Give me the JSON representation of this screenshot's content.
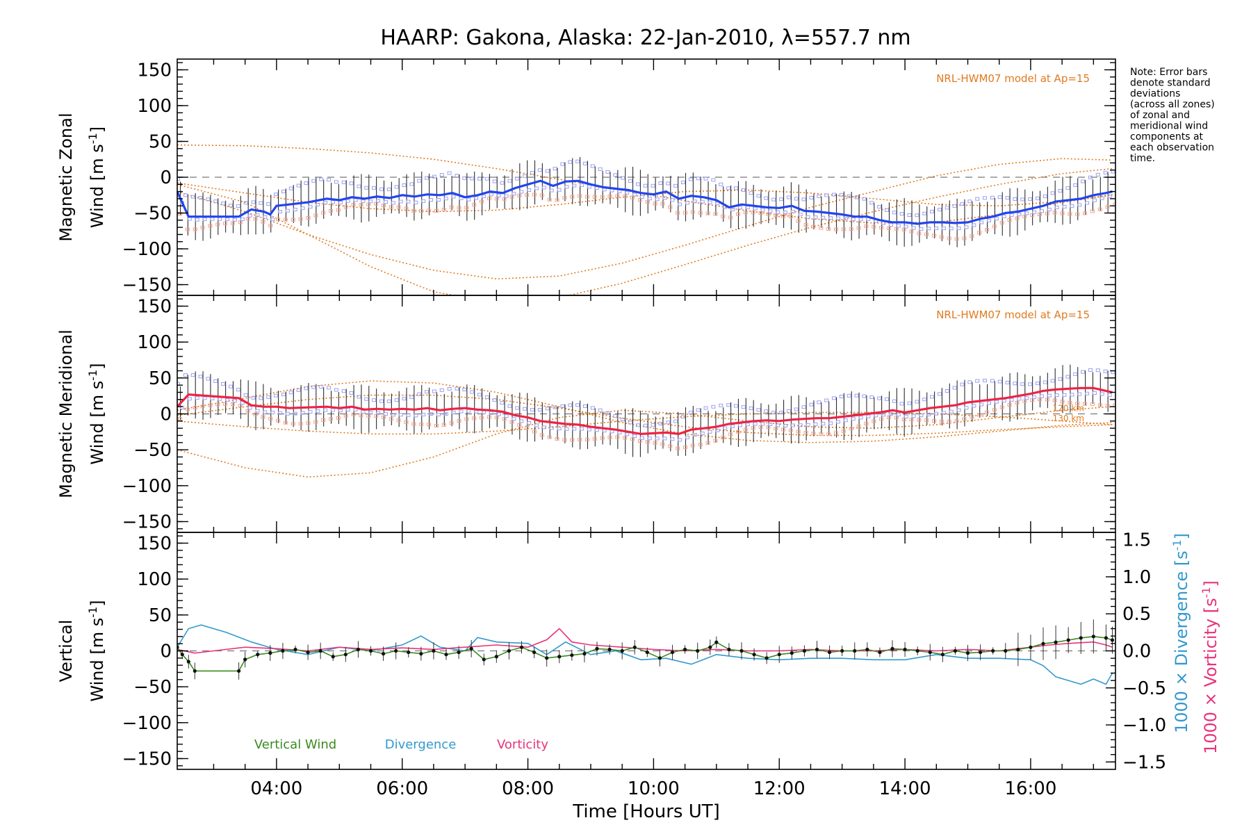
{
  "title": "HAARP: Gakona,  Alaska: 22-Jan-2010, λ=557.7 nm",
  "note": [
    "Note: Error bars",
    "denote standard",
    "deviations",
    "(across all zones)",
    "of zonal and",
    "meridional wind",
    "components at",
    "each observation",
    "time."
  ],
  "colors": {
    "zonal": "#2244ee",
    "meridional": "#ee2244",
    "vertical": "#3a8a1e",
    "divergence": "#3399cc",
    "vorticity": "#e8337a",
    "model": "#e07a1f",
    "zone_blue": "#9aa0f0",
    "zone_salmon": "#f3a08a"
  },
  "chart_data": [
    {
      "type": "line",
      "panel": "zonal",
      "ylabel_main": "Magnetic Zonal",
      "ylabel_sub": "Wind [m s",
      "ylabel_sup": "-1",
      "ylabel_end": "]",
      "ylim": [
        -165,
        165
      ],
      "yticks": [
        150,
        100,
        50,
        0,
        -50,
        -100,
        -150
      ],
      "model_note": "NRL-HWM07 model at Ap=15",
      "series": [
        {
          "name": "Zonal wind",
          "x": [
            2.42,
            2.6,
            3.4,
            3.6,
            3.8,
            3.9,
            4.0,
            4.2,
            4.5,
            4.8,
            5.0,
            5.2,
            5.4,
            5.6,
            5.8,
            6.0,
            6.2,
            6.4,
            6.6,
            6.8,
            7.0,
            7.2,
            7.4,
            7.6,
            7.8,
            8.0,
            8.2,
            8.4,
            8.6,
            8.8,
            9.0,
            9.2,
            9.4,
            9.6,
            9.8,
            10.0,
            10.2,
            10.4,
            10.6,
            10.8,
            11.0,
            11.2,
            11.4,
            11.6,
            11.8,
            12.0,
            12.2,
            12.4,
            12.6,
            12.8,
            13.0,
            13.2,
            13.4,
            13.6,
            13.8,
            14.0,
            14.2,
            14.4,
            14.6,
            14.8,
            15.0,
            15.2,
            15.4,
            15.6,
            15.8,
            16.0,
            16.2,
            16.4,
            16.6,
            16.8,
            17.0,
            17.2,
            17.3
          ],
          "y": [
            -20,
            -55,
            -55,
            -45,
            -48,
            -52,
            -40,
            -38,
            -35,
            -30,
            -32,
            -28,
            -30,
            -27,
            -29,
            -25,
            -27,
            -24,
            -25,
            -22,
            -28,
            -25,
            -20,
            -22,
            -15,
            -10,
            -5,
            -12,
            -6,
            -5,
            -10,
            -14,
            -16,
            -18,
            -22,
            -24,
            -20,
            -30,
            -26,
            -28,
            -32,
            -42,
            -38,
            -40,
            -42,
            -43,
            -40,
            -47,
            -48,
            -50,
            -52,
            -55,
            -55,
            -60,
            -63,
            -63,
            -65,
            -63,
            -63,
            -64,
            -63,
            -58,
            -55,
            -50,
            -48,
            -44,
            -40,
            -34,
            -32,
            -30,
            -25,
            -22,
            -20
          ]
        }
      ],
      "error_spread": 28,
      "model_curves": [
        {
          "x": [
            2.42,
            3.5,
            4.5,
            5.5,
            6.5,
            7.5,
            8.5,
            9.5,
            10.5,
            11.5,
            12.5,
            13.5,
            14.5,
            15.5,
            16.5,
            17.3
          ],
          "y": [
            45,
            44,
            40,
            34,
            25,
            12,
            -3,
            -18,
            -33,
            -47,
            -58,
            -64,
            -63,
            -52,
            -35,
            -25
          ]
        },
        {
          "x": [
            2.42,
            3.5,
            4.5,
            5.5,
            6.5,
            7.5,
            8.5,
            9.5,
            10.5,
            11.5,
            12.5,
            13.5,
            14.5,
            15.5,
            16.5,
            17.3
          ],
          "y": [
            -10,
            -35,
            -80,
            -125,
            -160,
            -175,
            -168,
            -148,
            -122,
            -95,
            -70,
            -48,
            -28,
            -10,
            5,
            12
          ]
        },
        {
          "x": [
            2.42,
            3.5,
            4.5,
            5.5,
            6.5,
            7.5,
            8.5,
            9.5,
            10.5,
            11.5,
            12.5,
            13.5,
            14.5,
            15.5,
            16.5,
            17.3
          ],
          "y": [
            -20,
            -48,
            -80,
            -108,
            -130,
            -142,
            -138,
            -120,
            -95,
            -68,
            -42,
            -20,
            2,
            18,
            26,
            24
          ]
        },
        {
          "x": [
            2.42,
            3.5,
            4.5,
            5.5,
            6.5,
            7.5,
            8.5,
            9.5,
            10.5,
            11.5,
            12.5,
            13.5,
            14.5,
            15.5,
            16.5,
            17.3
          ],
          "y": [
            -8,
            -22,
            -35,
            -44,
            -48,
            -46,
            -38,
            -28,
            -20,
            -18,
            -22,
            -30,
            -38,
            -40,
            -34,
            -24
          ]
        }
      ]
    },
    {
      "type": "line",
      "panel": "meridional",
      "ylabel_main": "Magnetic Meridional",
      "ylabel_sub": "Wind [m s",
      "ylabel_sup": "-1",
      "ylabel_end": "]",
      "ylim": [
        -165,
        165
      ],
      "yticks": [
        150,
        100,
        50,
        0,
        -50,
        -100,
        -150
      ],
      "model_note": "NRL-HWM07 model at Ap=15",
      "km_labels": [
        "120 km",
        "130 km"
      ],
      "series": [
        {
          "name": "Meridional wind",
          "x": [
            2.42,
            2.6,
            3.4,
            3.6,
            3.8,
            4.0,
            4.2,
            4.5,
            4.8,
            5.0,
            5.2,
            5.4,
            5.6,
            5.8,
            6.0,
            6.2,
            6.4,
            6.6,
            6.8,
            7.0,
            7.2,
            7.4,
            7.6,
            7.8,
            8.0,
            8.2,
            8.4,
            8.6,
            8.8,
            9.0,
            9.2,
            9.4,
            9.6,
            9.8,
            10.0,
            10.2,
            10.4,
            10.6,
            10.8,
            11.0,
            11.2,
            11.4,
            11.6,
            11.8,
            12.0,
            12.2,
            12.4,
            12.6,
            12.8,
            13.0,
            13.2,
            13.4,
            13.6,
            13.8,
            14.0,
            14.2,
            14.4,
            14.6,
            14.8,
            15.0,
            15.2,
            15.4,
            15.6,
            15.8,
            16.0,
            16.2,
            16.4,
            16.6,
            16.8,
            17.0,
            17.2,
            17.3
          ],
          "y": [
            10,
            27,
            22,
            12,
            10,
            10,
            8,
            9,
            10,
            8,
            10,
            6,
            7,
            6,
            7,
            6,
            8,
            5,
            7,
            8,
            6,
            5,
            3,
            -2,
            -5,
            -10,
            -12,
            -14,
            -15,
            -18,
            -20,
            -22,
            -25,
            -28,
            -27,
            -26,
            -28,
            -22,
            -20,
            -18,
            -14,
            -12,
            -10,
            -9,
            -10,
            -8,
            -7,
            -6,
            -6,
            -4,
            -2,
            0,
            2,
            5,
            2,
            5,
            8,
            10,
            12,
            16,
            18,
            20,
            22,
            25,
            28,
            32,
            34,
            35,
            36,
            36,
            32,
            30
          ]
        }
      ],
      "error_spread": 28,
      "model_curves": [
        {
          "x": [
            2.42,
            3.5,
            4.5,
            5.5,
            6.5,
            7.5,
            8.5,
            9.5,
            10.5,
            11.5,
            12.5,
            13.5,
            14.5,
            15.5,
            16.5,
            17.3
          ],
          "y": [
            -50,
            -75,
            -88,
            -82,
            -60,
            -28,
            -5,
            5,
            0,
            -10,
            -18,
            -20,
            -15,
            -5,
            5,
            10
          ]
        },
        {
          "x": [
            2.42,
            3.5,
            4.5,
            5.5,
            6.5,
            7.5,
            8.5,
            9.5,
            10.5,
            11.5,
            12.5,
            13.5,
            14.5,
            15.5,
            16.5,
            17.3
          ],
          "y": [
            5,
            22,
            38,
            46,
            43,
            30,
            10,
            -12,
            -28,
            -37,
            -40,
            -38,
            -32,
            -24,
            -16,
            -12
          ]
        },
        {
          "x": [
            2.42,
            3.5,
            4.5,
            5.5,
            6.5,
            7.5,
            8.5,
            9.5,
            10.5,
            11.5,
            12.5,
            13.5,
            14.5,
            15.5,
            16.5,
            17.3
          ],
          "y": [
            -2,
            10,
            20,
            26,
            26,
            20,
            8,
            -6,
            -18,
            -26,
            -30,
            -30,
            -27,
            -22,
            -18,
            -15
          ]
        },
        {
          "x": [
            2.42,
            3.5,
            4.5,
            5.5,
            6.5,
            7.5,
            8.5,
            9.5,
            10.5,
            11.5,
            12.5,
            13.5,
            14.5,
            15.5,
            16.5,
            17.3
          ],
          "y": [
            -10,
            -18,
            -24,
            -28,
            -28,
            -24,
            -18,
            -10,
            -4,
            0,
            2,
            2,
            0,
            -4,
            -10,
            -15
          ]
        }
      ]
    },
    {
      "type": "line",
      "panel": "vertical",
      "ylabel_main": "Vertical",
      "ylabel_sub": "Wind [m s",
      "ylabel_sup": "-1",
      "ylabel_end": "]",
      "ylim": [
        -165,
        165
      ],
      "yticks": [
        150,
        100,
        50,
        0,
        -50,
        -100,
        -150
      ],
      "y2lim": [
        -1.6,
        1.6
      ],
      "y2ticks": [
        1.5,
        1.0,
        0.5,
        0.0,
        -0.5,
        -1.0,
        -1.5
      ],
      "y2ticklabels": [
        "1.5",
        "1.0",
        "0.5",
        "0.0",
        "−0.5",
        "−1.0",
        "−1.5"
      ],
      "y2label_div": "1000 × Divergence [s",
      "y2label_vort": "1000 × Vorticity [s",
      "y2label_sup": "-1",
      "y2label_end": "]",
      "legend": [
        "Vertical Wind",
        "Divergence",
        "Vorticity"
      ],
      "xlabel": "Time [Hours UT]",
      "xlim": [
        2.42,
        17.35
      ],
      "xticks": [
        4,
        6,
        8,
        10,
        12,
        14,
        16
      ],
      "xticklabels": [
        "04:00",
        "06:00",
        "08:00",
        "10:00",
        "12:00",
        "14:00",
        "16:00"
      ],
      "series": [
        {
          "name": "Vertical Wind",
          "x": [
            2.42,
            2.5,
            2.6,
            2.7,
            3.4,
            3.5,
            3.7,
            3.9,
            4.1,
            4.3,
            4.5,
            4.7,
            4.9,
            5.1,
            5.3,
            5.5,
            5.7,
            5.9,
            6.1,
            6.3,
            6.5,
            6.7,
            6.9,
            7.1,
            7.3,
            7.5,
            7.7,
            7.9,
            8.1,
            8.3,
            8.5,
            8.7,
            8.9,
            9.1,
            9.3,
            9.5,
            9.7,
            9.9,
            10.1,
            10.3,
            10.5,
            10.7,
            10.9,
            11.0,
            11.2,
            11.4,
            11.6,
            11.8,
            12.0,
            12.2,
            12.4,
            12.6,
            12.8,
            13.0,
            13.2,
            13.4,
            13.6,
            13.8,
            14.0,
            14.2,
            14.4,
            14.6,
            14.8,
            15.0,
            15.2,
            15.4,
            15.6,
            15.8,
            16.0,
            16.2,
            16.4,
            16.6,
            16.8,
            17.0,
            17.2,
            17.3
          ],
          "y": [
            5,
            -5,
            -15,
            -28,
            -28,
            -12,
            -5,
            -3,
            0,
            2,
            -2,
            0,
            -8,
            -5,
            2,
            0,
            -4,
            0,
            -2,
            -4,
            0,
            -5,
            -2,
            3,
            -12,
            -8,
            0,
            5,
            -2,
            -10,
            -8,
            -6,
            -4,
            3,
            2,
            0,
            5,
            -2,
            -10,
            -2,
            2,
            0,
            5,
            12,
            2,
            0,
            -5,
            -10,
            -5,
            -3,
            0,
            2,
            -2,
            0,
            0,
            2,
            -2,
            3,
            2,
            0,
            -2,
            -5,
            0,
            -3,
            -2,
            0,
            0,
            2,
            5,
            10,
            12,
            15,
            18,
            20,
            18,
            15
          ]
        },
        {
          "name": "Divergence",
          "x": [
            2.42,
            2.6,
            2.8,
            3.2,
            3.6,
            4.0,
            4.5,
            5.0,
            5.5,
            6.0,
            6.3,
            6.6,
            7.0,
            7.2,
            7.5,
            8.0,
            8.3,
            8.6,
            9.0,
            9.4,
            9.8,
            10.2,
            10.6,
            11.0,
            11.5,
            12.0,
            12.5,
            13.0,
            13.5,
            14.0,
            14.5,
            15.0,
            15.5,
            16.0,
            16.2,
            16.4,
            16.6,
            16.8,
            17.0,
            17.2,
            17.3
          ],
          "y": [
            0.05,
            0.3,
            0.35,
            0.25,
            0.12,
            0.02,
            -0.05,
            0.05,
            0.0,
            0.08,
            0.2,
            0.05,
            0.0,
            0.18,
            0.12,
            0.1,
            -0.05,
            0.12,
            -0.05,
            0.0,
            -0.12,
            -0.1,
            -0.18,
            -0.05,
            -0.1,
            -0.12,
            -0.1,
            -0.1,
            -0.12,
            -0.12,
            -0.05,
            -0.1,
            -0.1,
            -0.12,
            -0.2,
            -0.35,
            -0.4,
            -0.45,
            -0.38,
            -0.45,
            -0.3
          ]
        },
        {
          "name": "Vorticity",
          "x": [
            2.42,
            2.7,
            3.0,
            3.5,
            4.0,
            4.5,
            5.0,
            5.5,
            6.0,
            6.5,
            7.0,
            7.5,
            8.0,
            8.3,
            8.5,
            8.7,
            9.0,
            9.5,
            10.0,
            10.5,
            11.0,
            11.5,
            12.0,
            12.5,
            13.0,
            13.5,
            14.0,
            14.5,
            15.0,
            15.5,
            16.0,
            16.3,
            16.6,
            17.0,
            17.2,
            17.3
          ],
          "y": [
            0.02,
            -0.03,
            0.0,
            0.05,
            0.03,
            0.0,
            0.05,
            0.02,
            0.04,
            0.02,
            0.05,
            0.08,
            0.05,
            0.15,
            0.3,
            0.12,
            0.08,
            0.05,
            0.02,
            0.0,
            0.02,
            0.0,
            0.0,
            0.02,
            0.0,
            0.0,
            0.02,
            0.0,
            0.02,
            0.0,
            0.05,
            0.08,
            0.1,
            0.12,
            0.08,
            0.05
          ]
        }
      ]
    }
  ]
}
